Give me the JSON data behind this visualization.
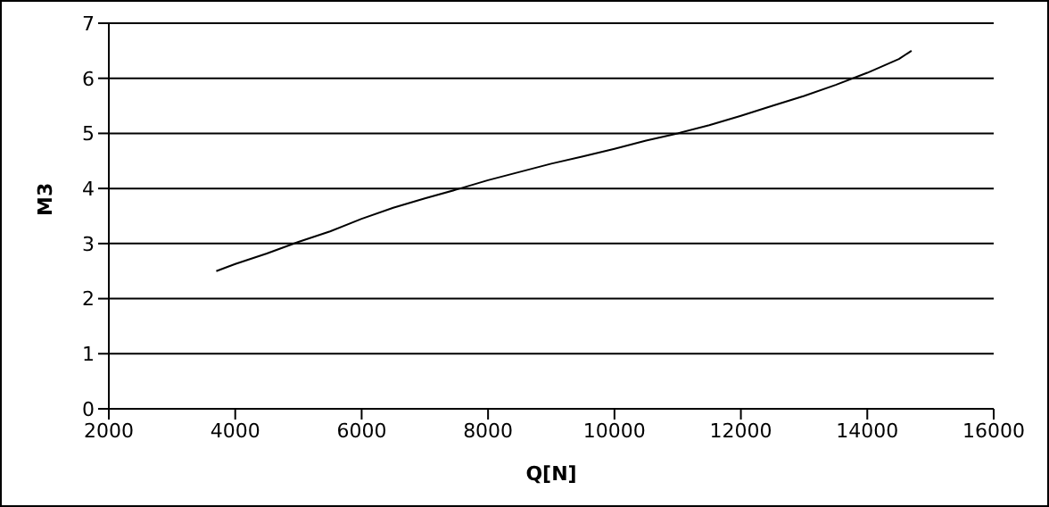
{
  "chart_data": {
    "type": "line",
    "xlabel": "Q[N]",
    "ylabel": "M3",
    "x": [
      3700,
      4000,
      4500,
      5000,
      5500,
      6000,
      6500,
      7000,
      7500,
      8000,
      8500,
      9000,
      9500,
      10000,
      10500,
      11000,
      11500,
      12000,
      12500,
      13000,
      13500,
      14000,
      14500,
      14700
    ],
    "series": [
      {
        "color": "#000000",
        "values": [
          2.5,
          2.63,
          2.82,
          3.03,
          3.22,
          3.45,
          3.65,
          3.82,
          3.98,
          4.15,
          4.3,
          4.45,
          4.58,
          4.72,
          4.87,
          5.0,
          5.15,
          5.32,
          5.5,
          5.68,
          5.88,
          6.1,
          6.35,
          6.5
        ]
      }
    ],
    "xlim": [
      2000,
      16000
    ],
    "xticks": [
      2000,
      4000,
      6000,
      8000,
      10000,
      12000,
      14000,
      16000
    ],
    "ylim": [
      0,
      7
    ],
    "yticks": [
      0,
      1,
      2,
      3,
      4,
      5,
      6,
      7
    ],
    "grid": "y",
    "legend": false,
    "marker": "none",
    "line_style": "solid"
  }
}
